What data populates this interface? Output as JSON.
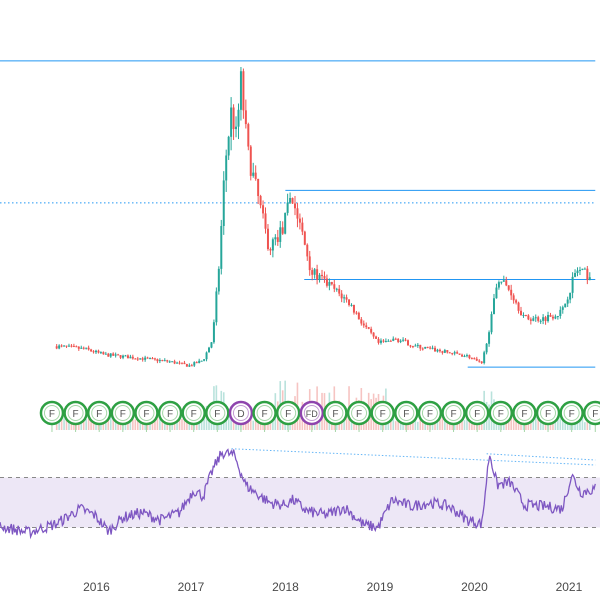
{
  "chart_data": [
    {
      "type": "candlestick",
      "panel": "price",
      "x_axis": {
        "tick_labels": [
          "2016",
          "2017",
          "2018",
          "2019",
          "2020",
          "2021"
        ]
      },
      "colors": {
        "up": "#26a69a",
        "down": "#ef5350",
        "line": "#2196f3",
        "event_green": "#2ea043",
        "event_purple": "#8e44ad"
      },
      "price_path": [
        {
          "t": 2015.6,
          "v": 0.35
        },
        {
          "t": 2015.9,
          "v": 0.33
        },
        {
          "t": 2016.1,
          "v": 0.29
        },
        {
          "t": 2016.4,
          "v": 0.27
        },
        {
          "t": 2016.8,
          "v": 0.24
        },
        {
          "t": 2017.0,
          "v": 0.21
        },
        {
          "t": 2017.15,
          "v": 0.25
        },
        {
          "t": 2017.25,
          "v": 0.4
        },
        {
          "t": 2017.32,
          "v": 0.95
        },
        {
          "t": 2017.38,
          "v": 1.65
        },
        {
          "t": 2017.45,
          "v": 2.05
        },
        {
          "t": 2017.5,
          "v": 1.85
        },
        {
          "t": 2017.55,
          "v": 2.25
        },
        {
          "t": 2017.62,
          "v": 1.75
        },
        {
          "t": 2017.72,
          "v": 1.45
        },
        {
          "t": 2017.85,
          "v": 1.05
        },
        {
          "t": 2018.0,
          "v": 1.2
        },
        {
          "t": 2018.08,
          "v": 1.45
        },
        {
          "t": 2018.2,
          "v": 1.15
        },
        {
          "t": 2018.3,
          "v": 0.88
        },
        {
          "t": 2018.5,
          "v": 0.78
        },
        {
          "t": 2018.7,
          "v": 0.66
        },
        {
          "t": 2018.85,
          "v": 0.5
        },
        {
          "t": 2019.0,
          "v": 0.37
        },
        {
          "t": 2019.2,
          "v": 0.4
        },
        {
          "t": 2019.4,
          "v": 0.35
        },
        {
          "t": 2019.7,
          "v": 0.31
        },
        {
          "t": 2019.95,
          "v": 0.28
        },
        {
          "t": 2020.1,
          "v": 0.22
        },
        {
          "t": 2020.2,
          "v": 0.55
        },
        {
          "t": 2020.27,
          "v": 0.85
        },
        {
          "t": 2020.4,
          "v": 0.75
        },
        {
          "t": 2020.55,
          "v": 0.55
        },
        {
          "t": 2020.75,
          "v": 0.55
        },
        {
          "t": 2020.95,
          "v": 0.6
        },
        {
          "t": 2021.1,
          "v": 0.9
        },
        {
          "t": 2021.25,
          "v": 0.85
        }
      ],
      "horizontal_lines": [
        {
          "value": 2.4,
          "style": "solid",
          "from": 2015.0,
          "to": 2021.3
        },
        {
          "value": 1.38,
          "style": "dotted",
          "from": 2015.0,
          "to": 2021.3
        },
        {
          "value": 1.47,
          "style": "solid",
          "from": 2018.02,
          "to": 2021.3
        },
        {
          "value": 0.83,
          "style": "solid",
          "from": 2018.22,
          "to": 2021.3
        },
        {
          "value": 0.2,
          "style": "solid",
          "from": 2019.95,
          "to": 2021.3
        }
      ],
      "events": [
        {
          "t": 2015.55,
          "label": "F",
          "kind": "green"
        },
        {
          "t": 2015.8,
          "label": "F",
          "kind": "green"
        },
        {
          "t": 2016.05,
          "label": "F",
          "kind": "green"
        },
        {
          "t": 2016.3,
          "label": "F",
          "kind": "green"
        },
        {
          "t": 2016.55,
          "label": "F",
          "kind": "green"
        },
        {
          "t": 2016.8,
          "label": "F",
          "kind": "green"
        },
        {
          "t": 2017.05,
          "label": "F",
          "kind": "green"
        },
        {
          "t": 2017.3,
          "label": "F",
          "kind": "green"
        },
        {
          "t": 2017.55,
          "label": "D",
          "kind": "purple"
        },
        {
          "t": 2017.8,
          "label": "F",
          "kind": "green"
        },
        {
          "t": 2018.05,
          "label": "F",
          "kind": "green"
        },
        {
          "t": 2018.3,
          "label": "FD",
          "kind": "purple"
        },
        {
          "t": 2018.55,
          "label": "F",
          "kind": "green"
        },
        {
          "t": 2018.8,
          "label": "F",
          "kind": "green"
        },
        {
          "t": 2019.05,
          "label": "F",
          "kind": "green"
        },
        {
          "t": 2019.3,
          "label": "F",
          "kind": "green"
        },
        {
          "t": 2019.55,
          "label": "F",
          "kind": "green"
        },
        {
          "t": 2019.8,
          "label": "F",
          "kind": "green"
        },
        {
          "t": 2020.05,
          "label": "F",
          "kind": "green"
        },
        {
          "t": 2020.3,
          "label": "F",
          "kind": "green"
        },
        {
          "t": 2020.55,
          "label": "F",
          "kind": "green"
        },
        {
          "t": 2020.8,
          "label": "F",
          "kind": "green"
        },
        {
          "t": 2021.05,
          "label": "F",
          "kind": "green"
        },
        {
          "t": 2021.3,
          "label": "F",
          "kind": "green"
        }
      ]
    },
    {
      "type": "line",
      "panel": "oscillator",
      "name": "",
      "color": "#7e57c2",
      "band": {
        "upper": 70,
        "lower": 30,
        "fill": "#ede7f6"
      },
      "values": [
        {
          "t": 2015.0,
          "v": 31
        },
        {
          "t": 2015.3,
          "v": 26
        },
        {
          "t": 2015.6,
          "v": 33
        },
        {
          "t": 2015.85,
          "v": 45
        },
        {
          "t": 2016.0,
          "v": 40
        },
        {
          "t": 2016.15,
          "v": 27
        },
        {
          "t": 2016.3,
          "v": 38
        },
        {
          "t": 2016.5,
          "v": 42
        },
        {
          "t": 2016.7,
          "v": 36
        },
        {
          "t": 2016.9,
          "v": 42
        },
        {
          "t": 2017.05,
          "v": 60
        },
        {
          "t": 2017.15,
          "v": 55
        },
        {
          "t": 2017.25,
          "v": 76
        },
        {
          "t": 2017.35,
          "v": 90
        },
        {
          "t": 2017.48,
          "v": 88
        },
        {
          "t": 2017.6,
          "v": 64
        },
        {
          "t": 2017.7,
          "v": 58
        },
        {
          "t": 2017.85,
          "v": 50
        },
        {
          "t": 2018.0,
          "v": 48
        },
        {
          "t": 2018.1,
          "v": 52
        },
        {
          "t": 2018.25,
          "v": 43
        },
        {
          "t": 2018.45,
          "v": 40
        },
        {
          "t": 2018.65,
          "v": 46
        },
        {
          "t": 2018.85,
          "v": 32
        },
        {
          "t": 2019.0,
          "v": 30
        },
        {
          "t": 2019.15,
          "v": 52
        },
        {
          "t": 2019.35,
          "v": 47
        },
        {
          "t": 2019.55,
          "v": 50
        },
        {
          "t": 2019.75,
          "v": 47
        },
        {
          "t": 2019.95,
          "v": 36
        },
        {
          "t": 2020.1,
          "v": 33
        },
        {
          "t": 2020.18,
          "v": 90
        },
        {
          "t": 2020.26,
          "v": 64
        },
        {
          "t": 2020.4,
          "v": 66
        },
        {
          "t": 2020.55,
          "v": 48
        },
        {
          "t": 2020.75,
          "v": 47
        },
        {
          "t": 2020.95,
          "v": 45
        },
        {
          "t": 2021.05,
          "v": 72
        },
        {
          "t": 2021.15,
          "v": 58
        },
        {
          "t": 2021.3,
          "v": 61
        }
      ],
      "trend_lines": [
        {
          "from": {
            "t": 2017.45,
            "v": 93
          },
          "to": {
            "t": 2021.3,
            "v": 80
          },
          "style": "dotted"
        },
        {
          "from": {
            "t": 2020.15,
            "v": 89
          },
          "to": {
            "t": 2021.3,
            "v": 84
          },
          "style": "dotted"
        }
      ]
    }
  ]
}
